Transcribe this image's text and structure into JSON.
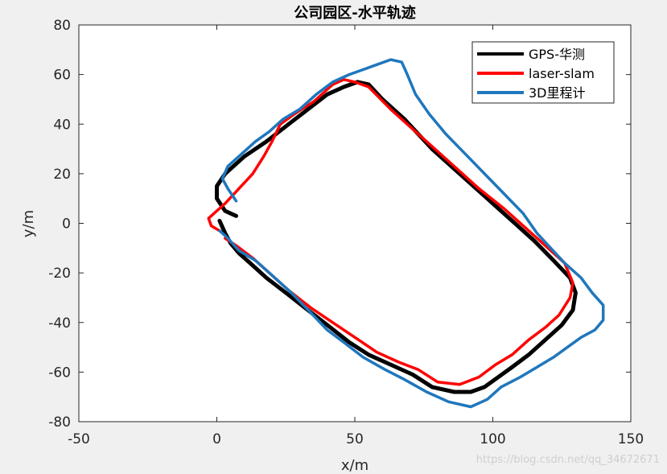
{
  "chart_data": {
    "type": "line",
    "title": "公司园区-水平轨迹",
    "xlabel": "x/m",
    "ylabel": "y/m",
    "xlim": [
      -50,
      150
    ],
    "ylim": [
      -80,
      80
    ],
    "xticks": [
      -50,
      0,
      50,
      100,
      150
    ],
    "yticks": [
      -80,
      -60,
      -40,
      -20,
      0,
      20,
      40,
      60,
      80
    ],
    "grid": false,
    "legend_position": "top-right",
    "series": [
      {
        "name": "GPS-华测",
        "color": "#000000",
        "points": [
          [
            1,
            1
          ],
          [
            3,
            -4
          ],
          [
            5,
            -8
          ],
          [
            8,
            -12
          ],
          [
            12,
            -16
          ],
          [
            18,
            -22
          ],
          [
            25,
            -28
          ],
          [
            33,
            -35
          ],
          [
            40,
            -41
          ],
          [
            48,
            -48
          ],
          [
            55,
            -53
          ],
          [
            63,
            -57
          ],
          [
            71,
            -61
          ],
          [
            78,
            -66
          ],
          [
            86,
            -68
          ],
          [
            92,
            -68
          ],
          [
            97,
            -66
          ],
          [
            102,
            -62
          ],
          [
            107,
            -58
          ],
          [
            113,
            -53
          ],
          [
            119,
            -47
          ],
          [
            125,
            -41
          ],
          [
            129,
            -35
          ],
          [
            130,
            -28
          ],
          [
            128,
            -22
          ],
          [
            122,
            -15
          ],
          [
            115,
            -7
          ],
          [
            107,
            1
          ],
          [
            98,
            10
          ],
          [
            88,
            20
          ],
          [
            78,
            30
          ],
          [
            68,
            42
          ],
          [
            60,
            50
          ],
          [
            55,
            56
          ],
          [
            51,
            57
          ],
          [
            46,
            55
          ],
          [
            40,
            52
          ],
          [
            33,
            46
          ],
          [
            26,
            40
          ],
          [
            18,
            33
          ],
          [
            10,
            27
          ],
          [
            3,
            20
          ],
          [
            0,
            15
          ],
          [
            0,
            10
          ],
          [
            3,
            5
          ],
          [
            7,
            3
          ]
        ]
      },
      {
        "name": "laser-slam",
        "color": "#ff0000",
        "points": [
          [
            3,
            -6
          ],
          [
            7,
            -9
          ],
          [
            13,
            -14
          ],
          [
            19,
            -20
          ],
          [
            26,
            -27
          ],
          [
            34,
            -34
          ],
          [
            42,
            -40
          ],
          [
            50,
            -46
          ],
          [
            58,
            -52
          ],
          [
            66,
            -56
          ],
          [
            73,
            -59
          ],
          [
            80,
            -64
          ],
          [
            88,
            -65
          ],
          [
            95,
            -62
          ],
          [
            101,
            -57
          ],
          [
            107,
            -53
          ],
          [
            113,
            -47
          ],
          [
            119,
            -42
          ],
          [
            124,
            -37
          ],
          [
            128,
            -30
          ],
          [
            129,
            -24
          ],
          [
            126,
            -16
          ],
          [
            119,
            -9
          ],
          [
            112,
            -2
          ],
          [
            104,
            6
          ],
          [
            95,
            14
          ],
          [
            85,
            24
          ],
          [
            74,
            35
          ],
          [
            63,
            46
          ],
          [
            55,
            55
          ],
          [
            50,
            57
          ],
          [
            46,
            58
          ],
          [
            42,
            56
          ],
          [
            35,
            49
          ],
          [
            28,
            44
          ],
          [
            23,
            40
          ],
          [
            20,
            33
          ],
          [
            17,
            27
          ],
          [
            13,
            20
          ],
          [
            8,
            14
          ],
          [
            3,
            8
          ],
          [
            -3,
            2
          ],
          [
            -2,
            -1
          ],
          [
            1,
            -3
          ]
        ]
      },
      {
        "name": "3D里程计",
        "color": "#1f77bd",
        "points": [
          [
            1,
            -3
          ],
          [
            4,
            -6
          ],
          [
            8,
            -11
          ],
          [
            14,
            -15
          ],
          [
            20,
            -21
          ],
          [
            27,
            -28
          ],
          [
            34,
            -36
          ],
          [
            40,
            -43
          ],
          [
            46,
            -48
          ],
          [
            53,
            -54
          ],
          [
            61,
            -59
          ],
          [
            68,
            -63
          ],
          [
            76,
            -68
          ],
          [
            84,
            -72
          ],
          [
            92,
            -74
          ],
          [
            98,
            -71
          ],
          [
            103,
            -66
          ],
          [
            110,
            -62
          ],
          [
            116,
            -58
          ],
          [
            122,
            -54
          ],
          [
            127,
            -50
          ],
          [
            132,
            -46
          ],
          [
            137,
            -43
          ],
          [
            140,
            -39
          ],
          [
            140,
            -33
          ],
          [
            136,
            -28
          ],
          [
            132,
            -22
          ],
          [
            126,
            -16
          ],
          [
            121,
            -10
          ],
          [
            116,
            -4
          ],
          [
            111,
            4
          ],
          [
            104,
            12
          ],
          [
            97,
            20
          ],
          [
            90,
            28
          ],
          [
            83,
            36
          ],
          [
            77,
            44
          ],
          [
            72,
            52
          ],
          [
            69,
            60
          ],
          [
            67,
            65
          ],
          [
            63,
            66
          ],
          [
            58,
            64
          ],
          [
            53,
            62
          ],
          [
            48,
            60
          ],
          [
            42,
            57
          ],
          [
            36,
            52
          ],
          [
            30,
            46
          ],
          [
            24,
            42
          ],
          [
            19,
            37
          ],
          [
            14,
            33
          ],
          [
            9,
            28
          ],
          [
            4,
            23
          ],
          [
            2,
            18
          ],
          [
            4,
            14
          ],
          [
            7,
            9
          ]
        ]
      }
    ]
  },
  "watermark": "https://blog.csdn.net/qq_34672671"
}
